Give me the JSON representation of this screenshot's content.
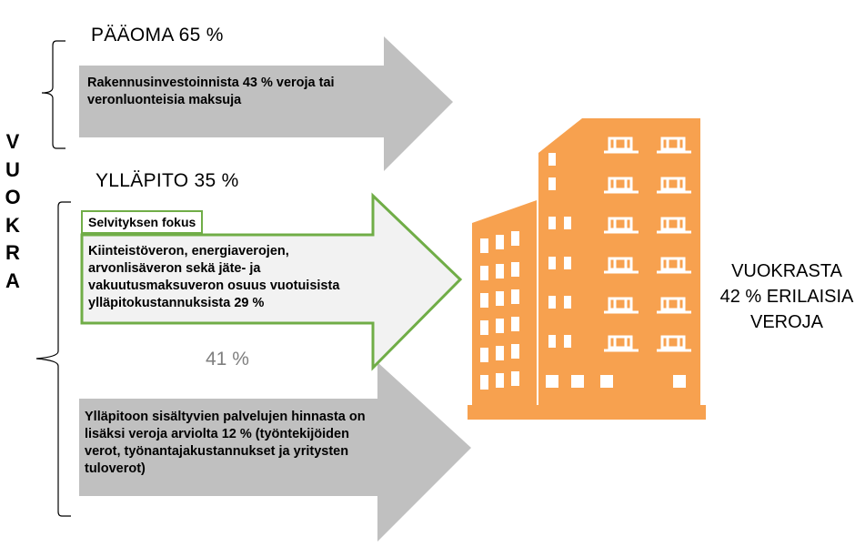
{
  "vertical_label": [
    "V",
    "U",
    "O",
    "K",
    "R",
    "A"
  ],
  "paaoma": {
    "heading": "PÄÄOMA 65 %",
    "text_line1": "Rakennusinvestoinnista 43 % veroja tai",
    "text_line2": "veronluonteisia maksuja"
  },
  "yllapito": {
    "heading": "YLLÄPITO 35 %",
    "focus_label": "Selvityksen fokus",
    "focus_line1": "Kiinteistöveron, energiaverojen,",
    "focus_line2": "arvonlisäveron sekä jäte- ja",
    "focus_line3": "vakuutusmaksuveron osuus vuotuisista",
    "focus_line4": "ylläpitokustannuksista 29 %",
    "total_pct": "41 %",
    "services_line1": "Ylläpitoon sisältyvien palvelujen hinnasta on",
    "services_line2": "lisäksi veroja arviolta 12 % (työntekijöiden",
    "services_line3": "verot, työnantajakustannukset ja yritysten",
    "services_line4": "tuloverot)"
  },
  "result": {
    "line1": "VUOKRASTA",
    "line2": "42 % ERILAISIA",
    "line3": "VEROJA"
  },
  "colors": {
    "gray_arrow": "#c0c0c0",
    "green_outline": "#70ad47",
    "focus_fill": "#f2f2f2",
    "building": "#f7a14f"
  },
  "icons": {
    "building": "apartment-building-icon"
  }
}
